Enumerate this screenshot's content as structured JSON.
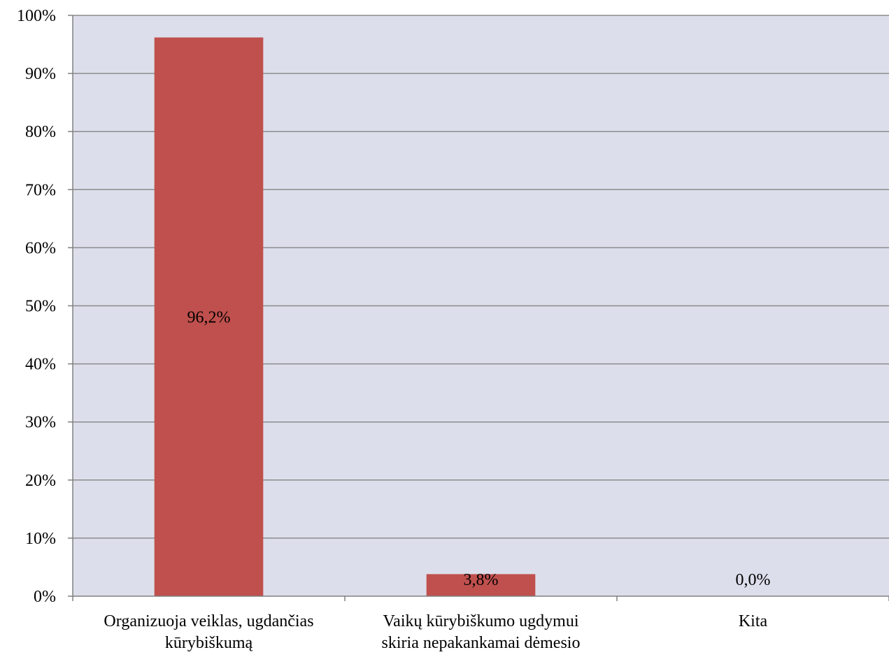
{
  "chart_data": {
    "type": "bar",
    "categories": [
      [
        "Organizuoja veiklas, ugdančias",
        "kūrybiškumą"
      ],
      [
        "Vaikų kūrybiškumo ugdymui",
        "skiria nepakankamai dėmesio"
      ],
      [
        "Kita"
      ]
    ],
    "values": [
      96.2,
      3.8,
      0.0
    ],
    "data_labels": [
      "96,2%",
      "3,8%",
      "0,0%"
    ],
    "ylim": [
      0,
      100
    ],
    "yticks": [
      0,
      10,
      20,
      30,
      40,
      50,
      60,
      70,
      80,
      90,
      100
    ],
    "ytick_labels": [
      "0%",
      "10%",
      "20%",
      "30%",
      "40%",
      "50%",
      "60%",
      "70%",
      "80%",
      "90%",
      "100%"
    ],
    "grid": true,
    "legend": "none",
    "title": "",
    "xlabel": "",
    "ylabel": ""
  },
  "colors": {
    "plot_background": "#dcdfeb",
    "bar": "#c0504d",
    "gridline": "#8c8c8c",
    "axis": "#808080",
    "text": "#000000"
  }
}
